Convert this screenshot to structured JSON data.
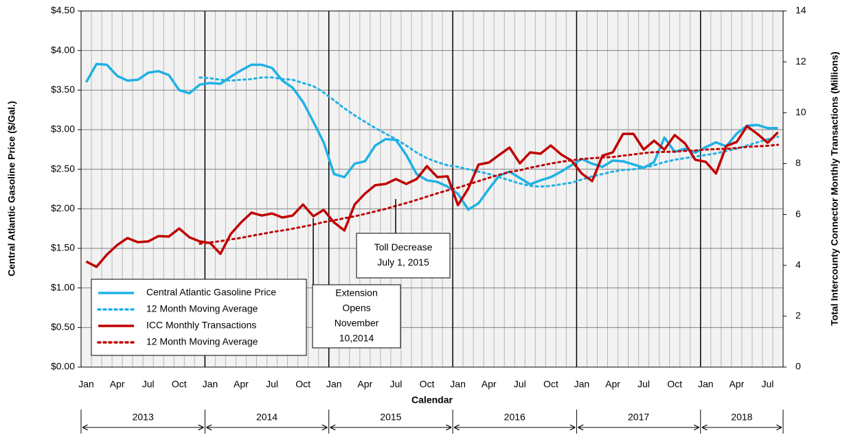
{
  "chart_data": {
    "type": "line",
    "xlabel": "Calendar",
    "ylabel": "Central Atlantic Gasoline Price ($/Gal.)",
    "y2label": "Total Intercounty Connector Monthly Transactions (Millions)",
    "categories": [
      "Jan",
      null,
      null,
      "Apr",
      null,
      null,
      "Jul",
      null,
      null,
      "Oct",
      null,
      null,
      "Jan",
      null,
      null,
      "Apr",
      null,
      null,
      "Jul",
      null,
      null,
      "Oct",
      null,
      null,
      "Jan",
      null,
      null,
      "Apr",
      null,
      null,
      "Jul",
      null,
      null,
      "Oct",
      null,
      null,
      "Jan",
      null,
      null,
      "Apr",
      null,
      null,
      "Jul",
      null,
      null,
      "Oct",
      null,
      null,
      "Jan",
      null,
      null,
      "Apr",
      null,
      null,
      "Jul",
      null,
      null,
      "Oct",
      null,
      null,
      "Jan",
      null,
      null,
      "Apr",
      null,
      null,
      "Jul",
      null
    ],
    "years": [
      "2013",
      "2014",
      "2015",
      "2016",
      "2017",
      "2018"
    ],
    "ylim": [
      0,
      4.5
    ],
    "yticks": [
      {
        "value": 0,
        "label": "$0.00"
      },
      {
        "value": 0.5,
        "label": "$0.50"
      },
      {
        "value": 1,
        "label": "$1.00"
      },
      {
        "value": 1.5,
        "label": "$1.50"
      },
      {
        "value": 2,
        "label": "$2.00"
      },
      {
        "value": 2.5,
        "label": "$2.50"
      },
      {
        "value": 3,
        "label": "$3.00"
      },
      {
        "value": 3.5,
        "label": "$3.50"
      },
      {
        "value": 4,
        "label": "$4.00"
      },
      {
        "value": 4.5,
        "label": "$4.50"
      }
    ],
    "y2lim": [
      0,
      14
    ],
    "y2ticks": [
      0,
      2,
      4,
      6,
      8,
      10,
      12,
      14
    ],
    "grid": true,
    "legend": "lower left",
    "series": [
      {
        "name": "Central Atlantic Gasoline Price",
        "color": "#1fb1e6",
        "style": "solid",
        "values": [
          3.6,
          3.83,
          3.82,
          3.68,
          3.62,
          3.63,
          3.72,
          3.74,
          3.69,
          3.5,
          3.46,
          3.57,
          3.59,
          3.58,
          3.67,
          3.75,
          3.82,
          3.82,
          3.78,
          3.62,
          3.53,
          3.35,
          3.1,
          2.84,
          2.44,
          2.4,
          2.57,
          2.6,
          2.8,
          2.88,
          2.87,
          2.68,
          2.44,
          2.36,
          2.34,
          2.28,
          2.19,
          1.99,
          2.07,
          2.25,
          2.42,
          2.47,
          2.39,
          2.31,
          2.36,
          2.4,
          2.47,
          2.55,
          2.63,
          2.57,
          2.53,
          2.61,
          2.6,
          2.56,
          2.52,
          2.59,
          2.9,
          2.72,
          2.76,
          2.71,
          2.78,
          2.84,
          2.79,
          2.95,
          3.05,
          3.06,
          3.02,
          3.02
        ]
      },
      {
        "name": "12 Month Moving Average",
        "color": "#1fb1e6",
        "style": "dotted",
        "values": [
          null,
          null,
          null,
          null,
          null,
          null,
          null,
          null,
          null,
          null,
          null,
          3.66,
          3.65,
          3.63,
          3.62,
          3.63,
          3.64,
          3.66,
          3.66,
          3.64,
          3.63,
          3.59,
          3.55,
          3.47,
          3.37,
          3.27,
          3.18,
          3.1,
          3.02,
          2.95,
          2.88,
          2.8,
          2.71,
          2.64,
          2.59,
          2.55,
          2.53,
          2.5,
          2.47,
          2.44,
          2.4,
          2.36,
          2.32,
          2.29,
          2.28,
          2.29,
          2.31,
          2.33,
          2.37,
          2.41,
          2.44,
          2.47,
          2.49,
          2.5,
          2.52,
          2.55,
          2.59,
          2.62,
          2.64,
          2.66,
          2.68,
          2.7,
          2.73,
          2.76,
          2.8,
          2.84,
          2.88,
          2.91
        ]
      },
      {
        "name": "ICC Monthly Transactions",
        "color": "#c00000",
        "style": "solid",
        "axis": "y2",
        "values": [
          4.15,
          3.94,
          4.42,
          4.8,
          5.07,
          4.91,
          4.94,
          5.15,
          5.13,
          5.45,
          5.1,
          4.94,
          4.88,
          4.45,
          5.23,
          5.69,
          6.07,
          5.96,
          6.04,
          5.88,
          5.96,
          6.39,
          5.93,
          6.18,
          5.69,
          5.37,
          6.39,
          6.82,
          7.15,
          7.2,
          7.39,
          7.2,
          7.39,
          7.9,
          7.47,
          7.5,
          6.37,
          7.01,
          7.96,
          8.04,
          8.34,
          8.63,
          8.01,
          8.44,
          8.39,
          8.71,
          8.36,
          8.12,
          7.61,
          7.31,
          8.31,
          8.44,
          9.17,
          9.17,
          8.55,
          8.9,
          8.55,
          9.12,
          8.79,
          8.15,
          8.07,
          7.61,
          8.69,
          8.85,
          9.47,
          9.17,
          8.82,
          9.23
        ]
      },
      {
        "name": "12 Month Moving Average",
        "color": "#c00000",
        "style": "dotted",
        "axis": "y2",
        "values": [
          null,
          null,
          null,
          null,
          null,
          null,
          null,
          null,
          null,
          null,
          null,
          4.85,
          4.9,
          4.95,
          5.02,
          5.08,
          5.16,
          5.23,
          5.31,
          5.37,
          5.44,
          5.52,
          5.6,
          5.7,
          5.77,
          5.85,
          5.93,
          6.02,
          6.12,
          6.22,
          6.34,
          6.45,
          6.57,
          6.7,
          6.83,
          6.95,
          7.05,
          7.18,
          7.31,
          7.44,
          7.56,
          7.67,
          7.74,
          7.84,
          7.92,
          8.0,
          8.07,
          8.13,
          8.18,
          8.21,
          8.24,
          8.26,
          8.31,
          8.36,
          8.41,
          8.45,
          8.46,
          8.47,
          8.5,
          8.52,
          8.55,
          8.57,
          8.58,
          8.61,
          8.66,
          8.68,
          8.7,
          8.74
        ]
      }
    ],
    "annotations": [
      {
        "lines": [
          "Extension",
          "Opens",
          "November",
          "10,2014"
        ]
      },
      {
        "lines": [
          "Toll Decrease",
          "July 1, 2015"
        ]
      }
    ]
  }
}
